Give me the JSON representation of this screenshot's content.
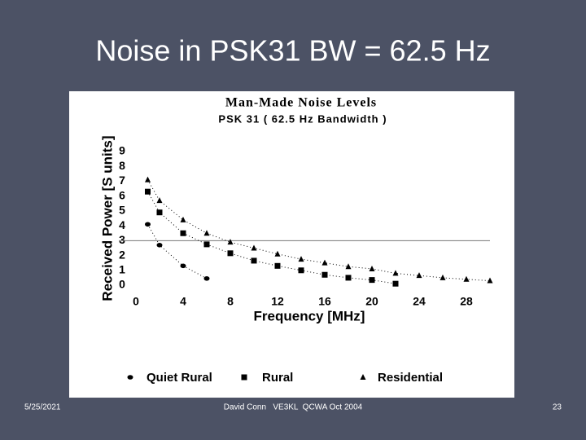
{
  "slide": {
    "title": "Noise in PSK31  BW = 62.5 Hz",
    "date": "5/25/2021",
    "footer": "David Conn   VE3KL  QCWA Oct 2004",
    "page": "23"
  },
  "chart_data": {
    "type": "scatter",
    "title": "Man-Made Noise Levels",
    "subtitle": "PSK 31 ( 62.5 Hz Bandwidth )",
    "x_label": "Frequency [MHz]",
    "y_label": "Received Power [S units]",
    "xlim": [
      0,
      30
    ],
    "ylim": [
      0,
      9
    ],
    "xticks": [
      0,
      4,
      8,
      12,
      16,
      20,
      24,
      28
    ],
    "yticks": [
      0,
      1,
      2,
      3,
      4,
      5,
      6,
      7,
      8,
      9
    ],
    "hline": 3,
    "series": [
      {
        "name": "Quiet Rural",
        "color": "#000000",
        "marker": "circle",
        "x": [
          1,
          2,
          4,
          6
        ],
        "values": [
          4.1,
          2.7,
          1.3,
          0.45
        ]
      },
      {
        "name": "Rural",
        "color": "#000000",
        "marker": "square",
        "x": [
          1,
          2,
          4,
          6,
          8,
          10,
          12,
          14,
          16,
          18,
          20,
          22
        ],
        "values": [
          6.3,
          4.9,
          3.5,
          2.75,
          2.15,
          1.65,
          1.3,
          1.0,
          0.7,
          0.5,
          0.35,
          0.1
        ]
      },
      {
        "name": "Residential",
        "color": "#000000",
        "marker": "triangle",
        "x": [
          1,
          2,
          4,
          6,
          8,
          10,
          12,
          14,
          16,
          18,
          20,
          22,
          24,
          26,
          28,
          30
        ],
        "values": [
          7.1,
          5.7,
          4.4,
          3.5,
          2.9,
          2.5,
          2.1,
          1.75,
          1.5,
          1.25,
          1.1,
          0.8,
          0.65,
          0.5,
          0.4,
          0.3
        ]
      }
    ]
  }
}
